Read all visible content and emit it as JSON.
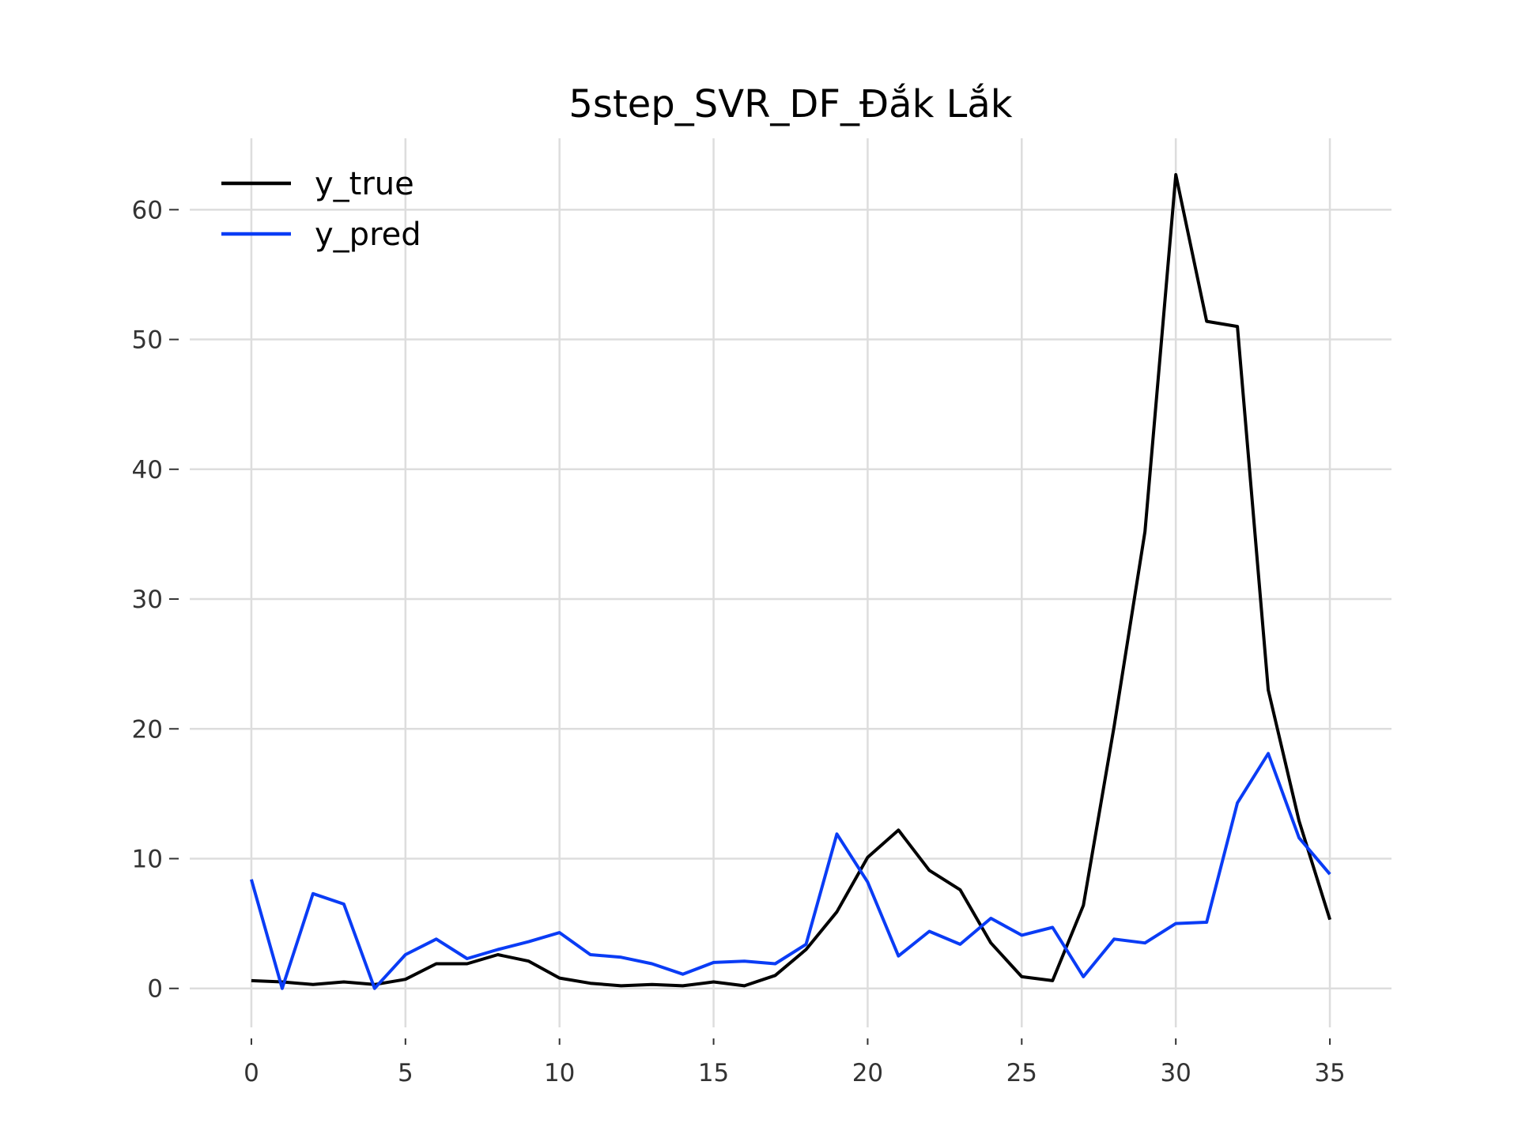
{
  "chart_data": {
    "type": "line",
    "title": "5step_SVR_DF_Đắk Lắk",
    "xlabel": "",
    "ylabel": "",
    "xlim": [
      -2,
      37
    ],
    "ylim": [
      -3,
      65.5
    ],
    "x_ticks": [
      0,
      5,
      10,
      15,
      20,
      25,
      30,
      35
    ],
    "y_ticks": [
      0,
      10,
      20,
      30,
      40,
      50,
      60
    ],
    "grid": true,
    "legend_position": "top-left",
    "x": [
      0,
      1,
      2,
      3,
      4,
      5,
      6,
      7,
      8,
      9,
      10,
      11,
      12,
      13,
      14,
      15,
      16,
      17,
      18,
      19,
      20,
      21,
      22,
      23,
      24,
      25,
      26,
      27,
      28,
      29,
      30,
      31,
      32,
      33,
      34,
      35
    ],
    "series": [
      {
        "name": "y_true",
        "color": "#000000",
        "values": [
          0.6,
          0.5,
          0.3,
          0.5,
          0.3,
          0.7,
          1.9,
          1.9,
          2.6,
          2.1,
          0.8,
          0.4,
          0.2,
          0.3,
          0.2,
          0.5,
          0.2,
          1.0,
          3.0,
          5.9,
          10.1,
          12.2,
          9.1,
          7.6,
          3.5,
          0.9,
          0.6,
          6.4,
          20.2,
          35.2,
          62.7,
          51.4,
          51.0,
          23.0,
          12.9,
          5.3
        ]
      },
      {
        "name": "y_pred",
        "color": "#0a3cf5",
        "values": [
          8.4,
          0.0,
          7.3,
          6.5,
          0.0,
          2.6,
          3.8,
          2.3,
          3.0,
          3.6,
          4.3,
          2.6,
          2.4,
          1.9,
          1.1,
          2.0,
          2.1,
          1.9,
          3.4,
          11.9,
          8.2,
          2.5,
          4.4,
          3.4,
          5.4,
          4.1,
          4.7,
          0.9,
          3.8,
          3.5,
          5.0,
          5.1,
          14.3,
          18.1,
          11.6,
          8.8
        ]
      }
    ]
  }
}
